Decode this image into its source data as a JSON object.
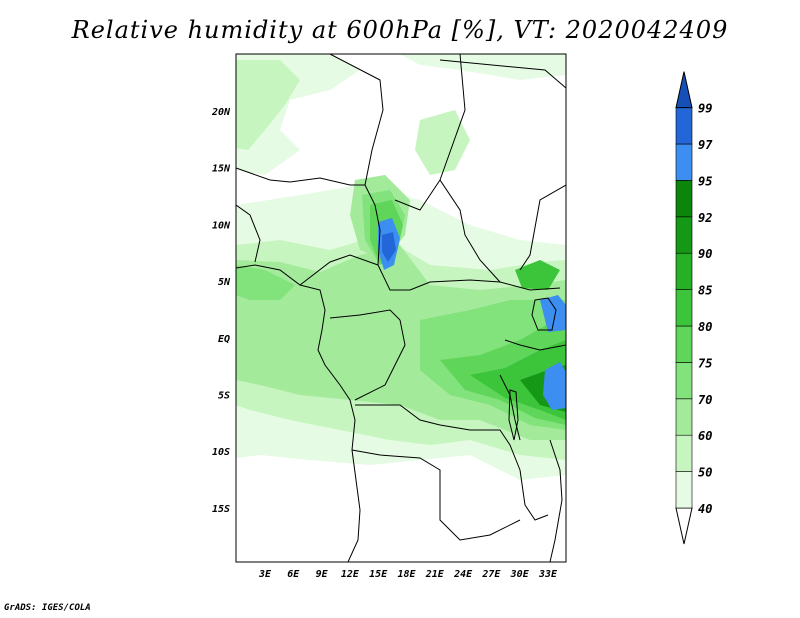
{
  "title": "Relative humidity at 600hPa [%], VT: 2020042409",
  "footer": "GrADS: IGES/COLA",
  "map": {
    "lat_labels": [
      "20N",
      "15N",
      "10N",
      "5N",
      "EQ",
      "5S",
      "10S",
      "15S"
    ],
    "lon_labels": [
      "3E",
      "6E",
      "9E",
      "12E",
      "15E",
      "18E",
      "21E",
      "24E",
      "27E",
      "30E",
      "33E"
    ]
  },
  "colorbar": {
    "levels": [
      "40",
      "50",
      "60",
      "70",
      "75",
      "80",
      "85",
      "90",
      "92",
      "95",
      "97",
      "99"
    ],
    "colors": [
      "#ffffff",
      "#e6fbe3",
      "#c6f5bf",
      "#a3eb9b",
      "#82e27b",
      "#5fd65a",
      "#3cc53b",
      "#26b026",
      "#159815",
      "#0b860b",
      "#3c8ff0",
      "#2266d8",
      "#174fb8"
    ]
  }
}
